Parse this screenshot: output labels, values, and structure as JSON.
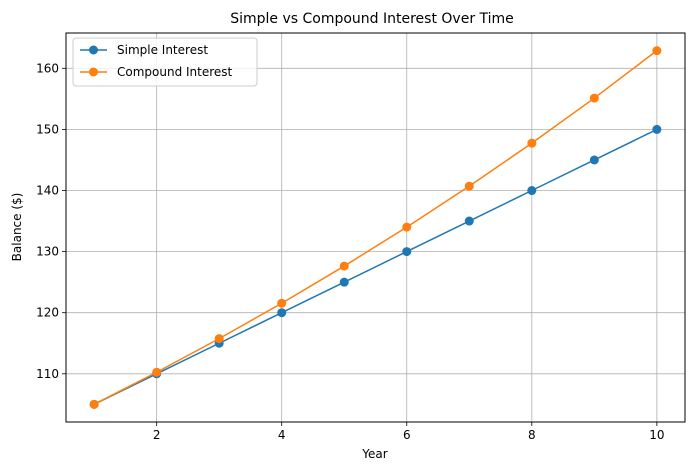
{
  "chart_data": {
    "type": "line",
    "title": "Simple vs Compound Interest Over Time",
    "xlabel": "Year",
    "ylabel": "Balance ($)",
    "x": [
      1,
      2,
      3,
      4,
      5,
      6,
      7,
      8,
      9,
      10
    ],
    "series": [
      {
        "name": "Simple Interest",
        "color": "#1f77b4",
        "values": [
          105,
          110,
          115,
          120,
          125,
          130,
          135,
          140,
          145,
          150
        ]
      },
      {
        "name": "Compound Interest",
        "color": "#ff7f0e",
        "values": [
          105.0,
          110.25,
          115.76,
          121.55,
          127.63,
          134.01,
          140.71,
          147.75,
          155.13,
          162.89
        ]
      }
    ],
    "xlim": [
      0.55,
      10.45
    ],
    "ylim": [
      102.11,
      165.78
    ],
    "xticks": [
      2,
      4,
      6,
      8,
      10
    ],
    "yticks": [
      110,
      120,
      130,
      140,
      150,
      160
    ],
    "grid": true,
    "legend_position": "top-left"
  }
}
